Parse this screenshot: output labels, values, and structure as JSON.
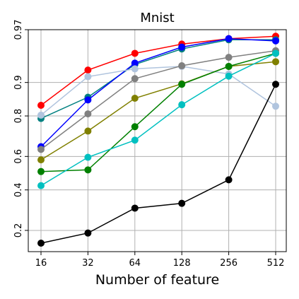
{
  "chart_data": {
    "type": "line",
    "title": "Mnist",
    "xlabel": "Number of feature",
    "ylabel": "",
    "x_scale": "log2",
    "y_scale": "logit",
    "grid": true,
    "legend": "none",
    "x": [
      16,
      32,
      64,
      128,
      256,
      512
    ],
    "x_tick_labels": [
      "16",
      "32",
      "64",
      "128",
      "256",
      "512"
    ],
    "y_ticks": [
      0.2,
      0.4,
      0.6,
      0.8,
      0.9,
      0.97
    ],
    "y_tick_labels": [
      "0.2",
      "0.4",
      "0.6",
      "0.8",
      "0.9",
      "0.97"
    ],
    "ylim": [
      0.13,
      0.97
    ],
    "series": [
      {
        "color": "#ff0000",
        "values": [
          0.838,
          0.924,
          0.948,
          0.958,
          0.963,
          0.965
        ]
      },
      {
        "color": "#008080",
        "values": [
          0.79,
          0.863,
          0.933,
          0.953,
          0.962,
          0.962
        ]
      },
      {
        "color": "#0000ff",
        "values": [
          0.655,
          0.855,
          0.935,
          0.955,
          0.963,
          0.961
        ]
      },
      {
        "color": "#b0c4de",
        "values": [
          0.803,
          0.912,
          0.926,
          0.93,
          0.917,
          0.835
        ]
      },
      {
        "color": "#808080",
        "values": [
          0.64,
          0.808,
          0.908,
          0.931,
          0.943,
          0.951
        ]
      },
      {
        "color": "#808000",
        "values": [
          0.58,
          0.735,
          0.86,
          0.897,
          0.93,
          0.937
        ]
      },
      {
        "color": "#008000",
        "values": [
          0.51,
          0.52,
          0.755,
          0.896,
          0.93,
          0.948
        ]
      },
      {
        "color": "#00c0c0",
        "values": [
          0.425,
          0.595,
          0.69,
          0.84,
          0.913,
          0.948
        ]
      },
      {
        "color": "#000000",
        "values": [
          0.155,
          0.19,
          0.3,
          0.325,
          0.46,
          0.896
        ]
      }
    ]
  }
}
